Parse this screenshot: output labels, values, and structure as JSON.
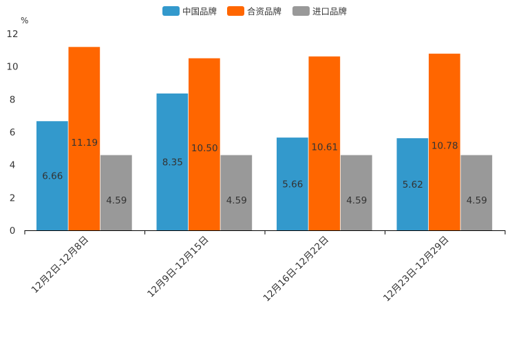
{
  "chart_data": {
    "type": "bar",
    "ylabel": "%",
    "ylim": [
      0,
      12
    ],
    "yticks": [
      "0",
      "2",
      "4",
      "6",
      "8",
      "10",
      "12"
    ],
    "categories": [
      "12月2日-12月8日",
      "12月9日-12月15日",
      "12月16日-12月22日",
      "12月23日-12月29日"
    ],
    "legend_position": "top-center",
    "grid": false,
    "series": [
      {
        "name": "中国品牌",
        "color": "#3399cc",
        "values": [
          6.66,
          8.35,
          5.66,
          5.62
        ],
        "labels": [
          "6.66",
          "8.35",
          "5.66",
          "5.62"
        ]
      },
      {
        "name": "合资品牌",
        "color": "#ff6600",
        "values": [
          11.19,
          10.5,
          10.61,
          10.78
        ],
        "labels": [
          "11.19",
          "10.50",
          "10.61",
          "10.78"
        ]
      },
      {
        "name": "进口品牌",
        "color": "#999999",
        "values": [
          4.59,
          4.59,
          4.59,
          4.59
        ],
        "labels": [
          "4.59",
          "4.59",
          "4.59",
          "4.59"
        ]
      }
    ]
  }
}
